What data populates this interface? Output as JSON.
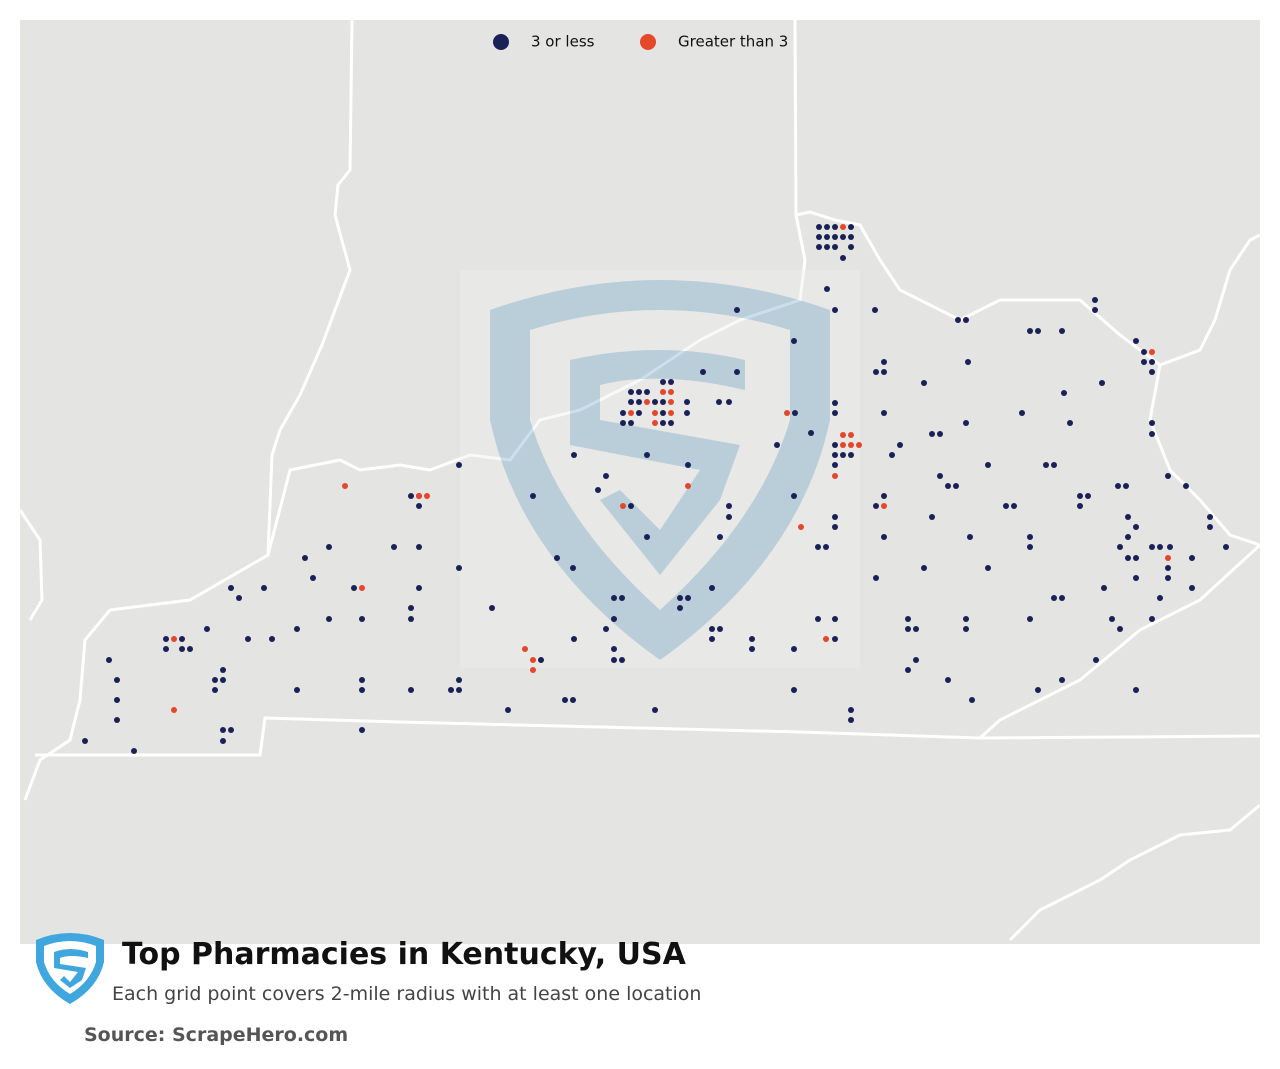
{
  "title": "Top Pharmacies in Kentucky, USA",
  "subtitle": "Each grid point covers 2-mile radius with at least one location",
  "source": "Source: ScrapeHero.com",
  "legend": [
    {
      "label": "3 or less",
      "color": "#1a2157"
    },
    {
      "label": "Greater than 3",
      "color": "#e4472a"
    }
  ]
}
